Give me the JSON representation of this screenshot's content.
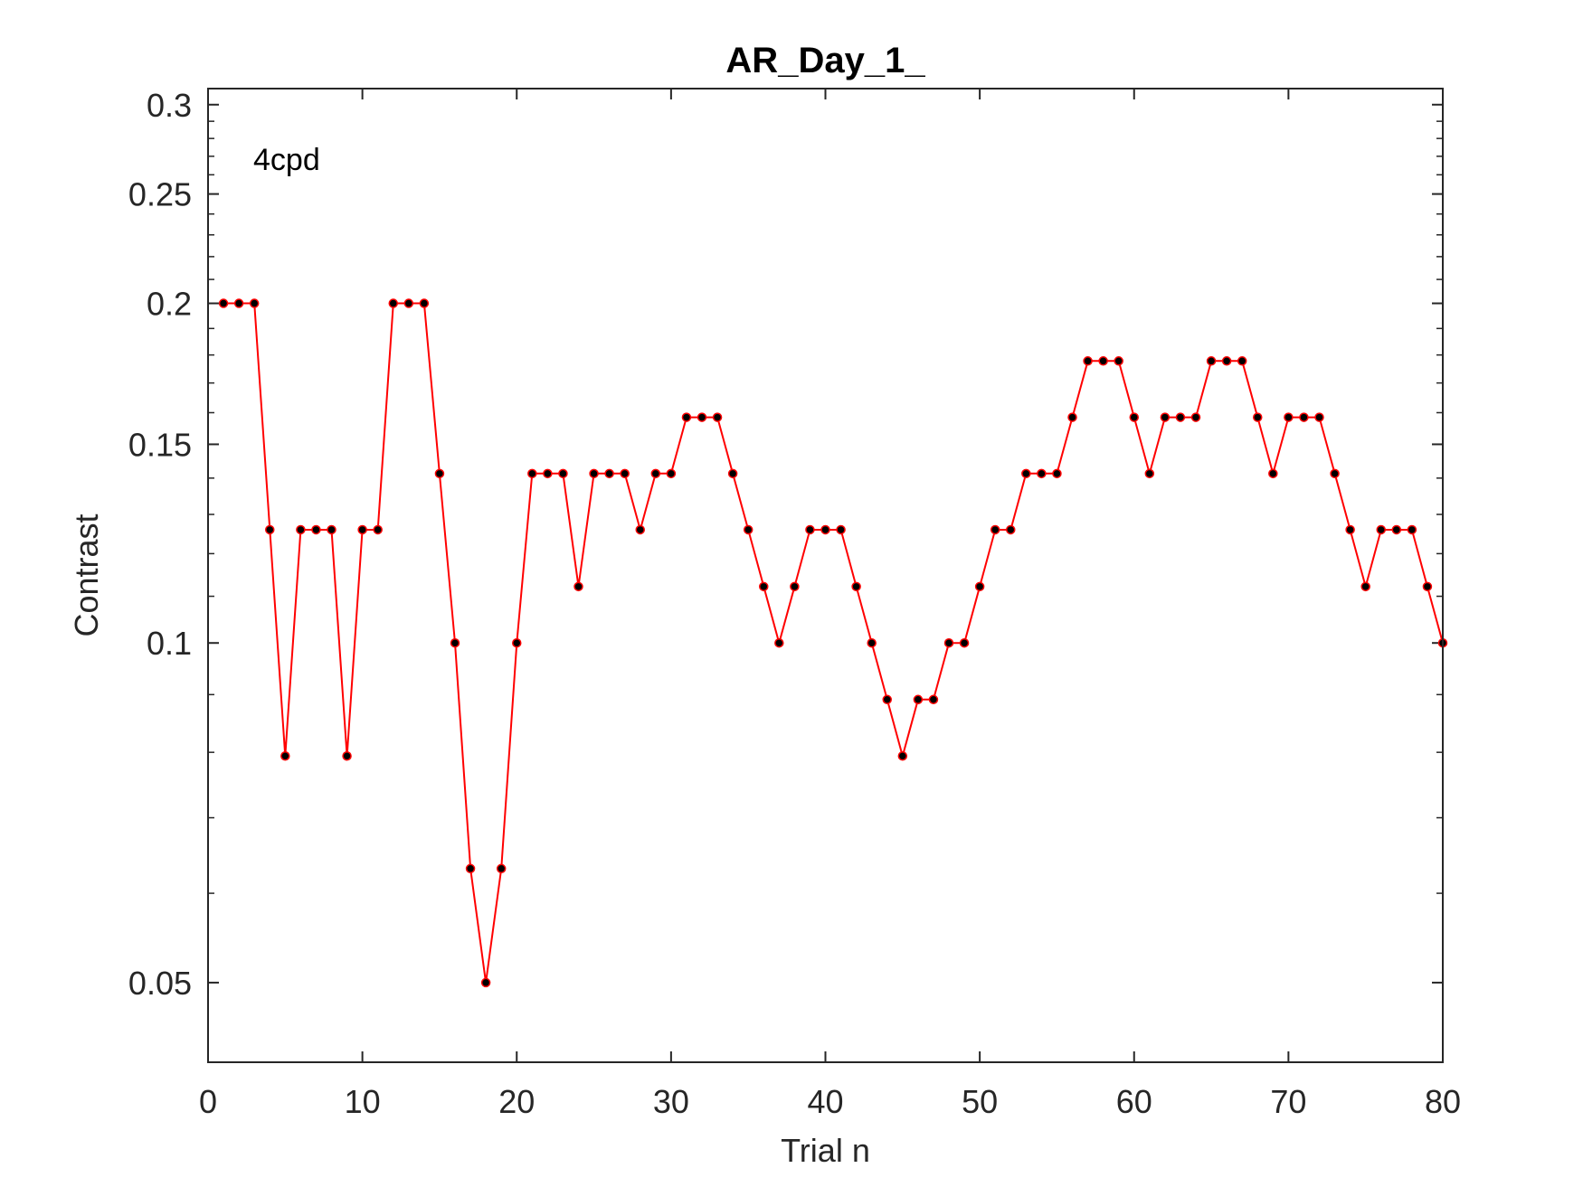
{
  "chart_data": {
    "type": "line",
    "title": "AR_Day_1_",
    "xlabel": "Trial n",
    "ylabel": "Contrast",
    "annotation": "4cpd",
    "yscale": "log",
    "xlim": [
      0,
      80
    ],
    "ylim": [
      0.0425,
      0.31
    ],
    "xticks": [
      0,
      10,
      20,
      30,
      40,
      50,
      60,
      70,
      80
    ],
    "xtick_labels": [
      "0",
      "10",
      "20",
      "30",
      "40",
      "50",
      "60",
      "70",
      "80"
    ],
    "yticks": [
      0.05,
      0.1,
      0.15,
      0.2,
      0.25,
      0.3
    ],
    "ytick_labels": [
      "0.05",
      "0.1",
      "0.15",
      "0.2",
      "0.25",
      "0.3"
    ],
    "yminor_ticks": [
      0.06,
      0.07,
      0.08,
      0.09,
      0.11,
      0.12,
      0.13,
      0.14,
      0.16,
      0.17,
      0.18,
      0.19,
      0.21,
      0.22,
      0.23,
      0.24,
      0.26,
      0.27,
      0.28,
      0.29
    ],
    "grid": false,
    "colors": {
      "line": "#ff0000",
      "marker_fill": "#000000",
      "axes": "#262626"
    },
    "series": [
      {
        "x": [
          1,
          2,
          3,
          4,
          5,
          6,
          7,
          8,
          9,
          10,
          11,
          12,
          13,
          14,
          15,
          16,
          17,
          18,
          19,
          20,
          21,
          22,
          23,
          24,
          25,
          26,
          27,
          28,
          29,
          30,
          31,
          32,
          33,
          34,
          35,
          36,
          37,
          38,
          39,
          40,
          41,
          42,
          43,
          44,
          45,
          46,
          47,
          48,
          49,
          50,
          51,
          52,
          53,
          54,
          55,
          56,
          57,
          58,
          59,
          60,
          61,
          62,
          63,
          64,
          65,
          66,
          67,
          68,
          69,
          70,
          71,
          72,
          73,
          74,
          75,
          76,
          77,
          78,
          79,
          80
        ],
        "values": [
          0.2,
          0.2,
          0.2,
          0.126,
          0.0794,
          0.126,
          0.126,
          0.126,
          0.0794,
          0.126,
          0.126,
          0.2,
          0.2,
          0.2,
          0.1413,
          0.1,
          0.0631,
          0.05,
          0.0631,
          0.1,
          0.1413,
          0.1413,
          0.1413,
          0.1122,
          0.1413,
          0.1413,
          0.1413,
          0.126,
          0.1413,
          0.1413,
          0.1585,
          0.1585,
          0.1585,
          0.1413,
          0.126,
          0.1122,
          0.1,
          0.1122,
          0.126,
          0.126,
          0.126,
          0.1122,
          0.1,
          0.0891,
          0.0794,
          0.0891,
          0.0891,
          0.1,
          0.1,
          0.1122,
          0.126,
          0.126,
          0.1413,
          0.1413,
          0.1413,
          0.1585,
          0.1778,
          0.1778,
          0.1778,
          0.1585,
          0.1413,
          0.1585,
          0.1585,
          0.1585,
          0.1778,
          0.1778,
          0.1778,
          0.1585,
          0.1413,
          0.1585,
          0.1585,
          0.1585,
          0.1413,
          0.126,
          0.1122,
          0.126,
          0.126,
          0.126,
          0.1122,
          0.1
        ]
      }
    ]
  }
}
